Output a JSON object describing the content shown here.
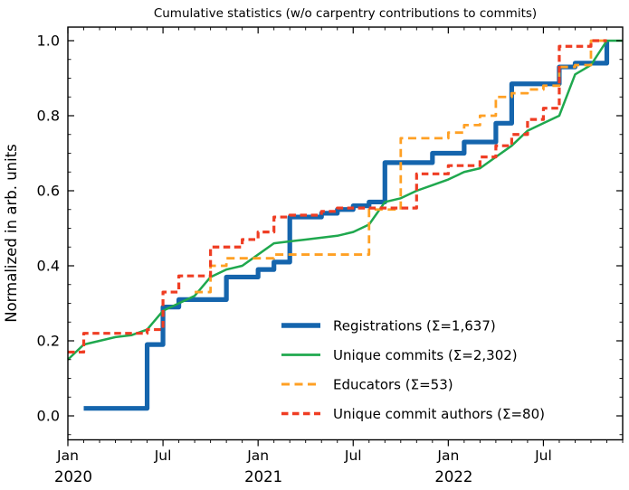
{
  "figure": {
    "title": "Cumulative statistics (w/o carpentry contributions to commits)",
    "ylabel": "Normalized in arb. units"
  },
  "chart_data": {
    "type": "line",
    "title": "Cumulative statistics (w/o carpentry contributions to commits)",
    "xlabel": "",
    "ylabel": "Normalized in arb. units",
    "x_unit": "month",
    "x_start": "2020-01",
    "x_end": "2022-12",
    "x_months_total": 35,
    "ylim": [
      -0.065,
      1.036
    ],
    "grid": false,
    "legend_position": "lower right",
    "x_ticks": [
      {
        "m": 0,
        "label": "Jan",
        "year": "2020"
      },
      {
        "m": 6,
        "label": "Jul"
      },
      {
        "m": 12,
        "label": "Jan",
        "year": "2021"
      },
      {
        "m": 18,
        "label": "Jul"
      },
      {
        "m": 24,
        "label": "Jan",
        "year": "2022"
      },
      {
        "m": 30,
        "label": "Jul"
      }
    ],
    "y_ticks": [
      0.0,
      0.2,
      0.4,
      0.6,
      0.8,
      1.0
    ],
    "y_minor_step": 0.05,
    "series": [
      {
        "name": "Registrations  (Σ=1,637)",
        "color": "#1565ad",
        "width": 5.2,
        "dash": null,
        "step": true,
        "values": [
          null,
          0.02,
          0.02,
          0.02,
          0.02,
          0.19,
          0.29,
          0.31,
          0.31,
          0.31,
          0.37,
          0.37,
          0.39,
          0.41,
          0.53,
          0.53,
          0.54,
          0.55,
          0.56,
          0.57,
          0.675,
          0.675,
          0.675,
          0.7,
          0.7,
          0.73,
          0.73,
          0.78,
          0.885,
          0.885,
          0.885,
          0.93,
          0.94,
          0.94,
          1.0,
          null
        ]
      },
      {
        "name": "Unique commits (Σ=2,302)",
        "color": "#1fa84e",
        "width": 2.5,
        "dash": null,
        "step": false,
        "values": [
          0.15,
          0.19,
          0.2,
          0.21,
          0.215,
          0.23,
          0.28,
          0.3,
          0.32,
          0.37,
          0.39,
          0.4,
          0.43,
          0.46,
          0.465,
          0.47,
          0.475,
          0.48,
          0.49,
          0.51,
          0.57,
          0.58,
          0.6,
          0.615,
          0.63,
          0.65,
          0.66,
          0.69,
          0.72,
          0.76,
          0.78,
          0.8,
          0.91,
          0.935,
          1.0,
          1.0
        ]
      },
      {
        "name": "Educators (Σ=53)",
        "color": "#ffa024",
        "width": 2.8,
        "dash": "9,5.5",
        "step": true,
        "values": [
          null,
          null,
          null,
          null,
          null,
          null,
          null,
          null,
          0.33,
          0.4,
          0.42,
          0.42,
          0.42,
          0.43,
          0.43,
          0.43,
          0.43,
          0.43,
          0.43,
          0.55,
          0.55,
          0.74,
          0.74,
          0.74,
          0.755,
          0.775,
          0.8,
          0.85,
          0.86,
          0.87,
          0.88,
          0.93,
          0.935,
          1.0,
          1.0,
          null
        ]
      },
      {
        "name": "Unique commit authors (Σ=80)",
        "color": "#ef3d23",
        "width": 3.2,
        "dash": "7.5,4.5",
        "step": true,
        "values": [
          0.17,
          0.22,
          0.22,
          0.22,
          0.22,
          0.23,
          0.33,
          0.373,
          0.373,
          0.45,
          0.45,
          0.47,
          0.49,
          0.53,
          0.535,
          0.535,
          0.545,
          0.554,
          0.554,
          0.554,
          0.554,
          0.554,
          0.645,
          0.645,
          0.667,
          0.667,
          0.69,
          0.72,
          0.75,
          0.79,
          0.82,
          0.985,
          0.985,
          1.0,
          1.0,
          null
        ]
      }
    ]
  }
}
